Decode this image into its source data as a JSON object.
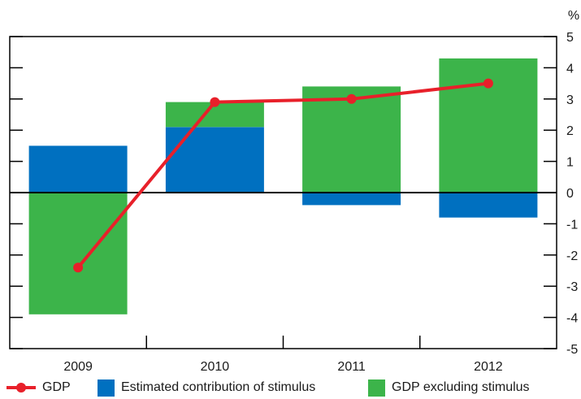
{
  "chart_data": {
    "type": "bar",
    "stacked": true,
    "categories": [
      "2009",
      "2010",
      "2011",
      "2012"
    ],
    "series": [
      {
        "name": "Estimated contribution of stimulus",
        "kind": "bar",
        "color": "#0070c0",
        "values": [
          1.5,
          2.1,
          -0.4,
          -0.8
        ]
      },
      {
        "name": "GDP excluding stimulus",
        "kind": "bar",
        "color": "#3cb44a",
        "values": [
          -3.9,
          0.8,
          3.4,
          4.3
        ]
      },
      {
        "name": "GDP",
        "kind": "line",
        "color": "#e8202a",
        "values": [
          -2.4,
          2.9,
          3.0,
          3.5
        ]
      }
    ],
    "ylim": [
      -5,
      5
    ],
    "yticks": [
      "-5",
      "-4",
      "-3",
      "-2",
      "-1",
      "0",
      "1",
      "2",
      "3",
      "4",
      "5"
    ],
    "yunit": "%",
    "grid": false,
    "legend_position": "bottom"
  }
}
